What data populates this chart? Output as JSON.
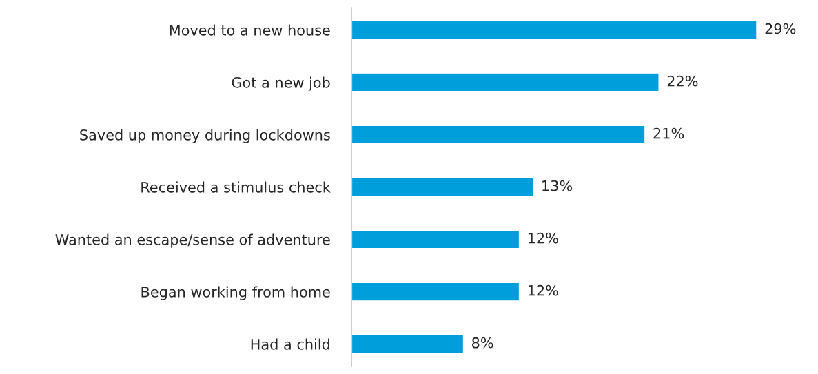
{
  "chart_data": {
    "type": "bar",
    "orientation": "horizontal",
    "categories": [
      "Moved to a new house",
      "Got a new job",
      "Saved up money during lockdowns",
      "Received a stimulus check",
      "Wanted an escape/sense of adventure",
      "Began working from home",
      "Had a child"
    ],
    "values": [
      29,
      22,
      21,
      13,
      12,
      12,
      8
    ],
    "color": "#009fdb",
    "value_labels": [
      "29%",
      "22%",
      "21%",
      "13%",
      "12%",
      "12%",
      "8%"
    ],
    "tick_labels": "y",
    "grid": false,
    "legend": false
  }
}
